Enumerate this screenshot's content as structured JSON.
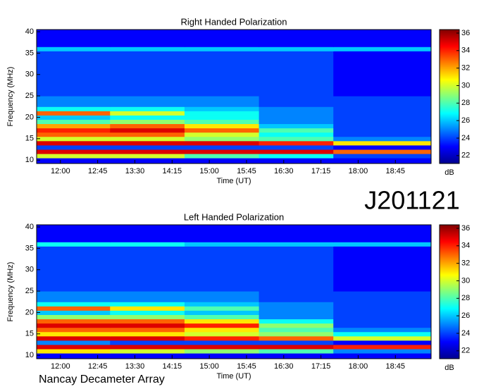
{
  "chart_data": [
    {
      "type": "heatmap",
      "title": "Right Handed Polarization",
      "xlabel": "Time (UT)",
      "ylabel": "Frequency (MHz)",
      "zlabel": "dB",
      "xbins": [
        11.52,
        13,
        14.5,
        16,
        17.5,
        19.47
      ],
      "ybins": [
        9.2,
        10.5,
        11.5,
        12.5,
        13.5,
        14.5,
        15.5,
        16.5,
        17.5,
        18.5,
        19.5,
        20.5,
        21.5,
        22.5,
        25,
        35.5,
        36.5,
        40.5
      ],
      "values": [
        [
          23,
          23,
          23,
          23,
          23
        ],
        [
          30,
          30,
          28,
          27,
          24
        ],
        [
          35,
          35,
          35,
          35,
          33
        ],
        [
          24,
          24,
          24,
          24,
          23
        ],
        [
          35,
          35,
          35,
          34,
          31
        ],
        [
          30,
          30,
          29,
          28,
          25
        ],
        [
          33,
          33,
          30,
          27,
          24
        ],
        [
          34,
          35,
          33,
          28,
          24
        ],
        [
          32,
          33,
          31,
          26,
          24
        ],
        [
          28,
          29,
          28,
          25,
          24
        ],
        [
          26,
          27,
          27,
          25,
          24
        ],
        [
          33,
          30,
          27,
          25,
          24
        ],
        [
          27,
          27,
          26,
          25,
          24
        ],
        [
          25,
          25,
          25,
          24,
          24
        ],
        [
          24,
          24,
          24,
          24,
          23
        ],
        [
          26,
          26,
          26,
          26,
          26
        ],
        [
          23,
          23,
          23,
          23,
          23
        ]
      ],
      "colormap": "jet",
      "xlim": [
        11.52,
        19.47
      ],
      "ylim": [
        9.2,
        40.5
      ],
      "zlim": [
        21.1,
        36.4
      ],
      "xticks": [
        {
          "value": 12,
          "label": "12:00"
        },
        {
          "value": 12.75,
          "label": "12:45"
        },
        {
          "value": 13.5,
          "label": "13:30"
        },
        {
          "value": 14.25,
          "label": "14:15"
        },
        {
          "value": 15,
          "label": "15:00"
        },
        {
          "value": 15.75,
          "label": "15:45"
        },
        {
          "value": 16.5,
          "label": "16:30"
        },
        {
          "value": 17.25,
          "label": "17:15"
        },
        {
          "value": 18,
          "label": "18:00"
        },
        {
          "value": 18.75,
          "label": "18:45"
        }
      ],
      "yticks": [
        10,
        15,
        20,
        25,
        30,
        35,
        40
      ],
      "zticks": [
        22,
        24,
        26,
        28,
        30,
        32,
        34,
        36
      ]
    },
    {
      "type": "heatmap",
      "title": "Left Handed Polarization",
      "xlabel": "Time (UT)",
      "ylabel": "Frequency (MHz)",
      "zlabel": "dB",
      "xbins": [
        11.52,
        13,
        14.5,
        16,
        17.5,
        19.47
      ],
      "ybins": [
        9.2,
        10.5,
        11.5,
        12.5,
        13.5,
        14.5,
        15.5,
        16.5,
        17.5,
        18.5,
        19.5,
        20.5,
        21.5,
        22.5,
        25,
        35.5,
        36.5,
        40.5
      ],
      "values": [
        [
          23,
          23,
          23,
          23,
          23
        ],
        [
          31,
          30,
          29,
          28,
          25
        ],
        [
          35,
          35,
          35,
          35,
          34
        ],
        [
          25,
          24,
          24,
          24,
          23
        ],
        [
          35,
          35,
          34,
          33,
          30
        ],
        [
          31,
          31,
          30,
          29,
          27
        ],
        [
          33,
          33,
          31,
          28,
          25
        ],
        [
          35,
          35,
          34,
          29,
          24
        ],
        [
          33,
          33,
          31,
          27,
          24
        ],
        [
          29,
          29,
          28,
          25,
          24
        ],
        [
          26,
          27,
          26,
          25,
          24
        ],
        [
          33,
          31,
          28,
          25,
          24
        ],
        [
          27,
          27,
          26,
          25,
          24
        ],
        [
          25,
          25,
          25,
          24,
          24
        ],
        [
          24,
          24,
          24,
          24,
          23
        ],
        [
          27,
          27,
          26,
          26,
          26
        ],
        [
          23,
          23,
          23,
          23,
          23
        ]
      ],
      "colormap": "jet",
      "xlim": [
        11.52,
        19.47
      ],
      "ylim": [
        9.2,
        40.5
      ],
      "zlim": [
        21.1,
        36.4
      ],
      "xticks": [
        {
          "value": 12,
          "label": "12:00"
        },
        {
          "value": 12.75,
          "label": "12:45"
        },
        {
          "value": 13.5,
          "label": "13:30"
        },
        {
          "value": 14.25,
          "label": "14:15"
        },
        {
          "value": 15,
          "label": "15:00"
        },
        {
          "value": 15.75,
          "label": "15:45"
        },
        {
          "value": 16.5,
          "label": "16:30"
        },
        {
          "value": 17.25,
          "label": "17:15"
        },
        {
          "value": 18,
          "label": "18:00"
        },
        {
          "value": 18.75,
          "label": "18:45"
        }
      ],
      "yticks": [
        10,
        15,
        20,
        25,
        30,
        35,
        40
      ],
      "zticks": [
        22,
        24,
        26,
        28,
        30,
        32,
        34,
        36
      ]
    }
  ],
  "id_label": "J201121",
  "footer": "Nancay Decameter Array"
}
